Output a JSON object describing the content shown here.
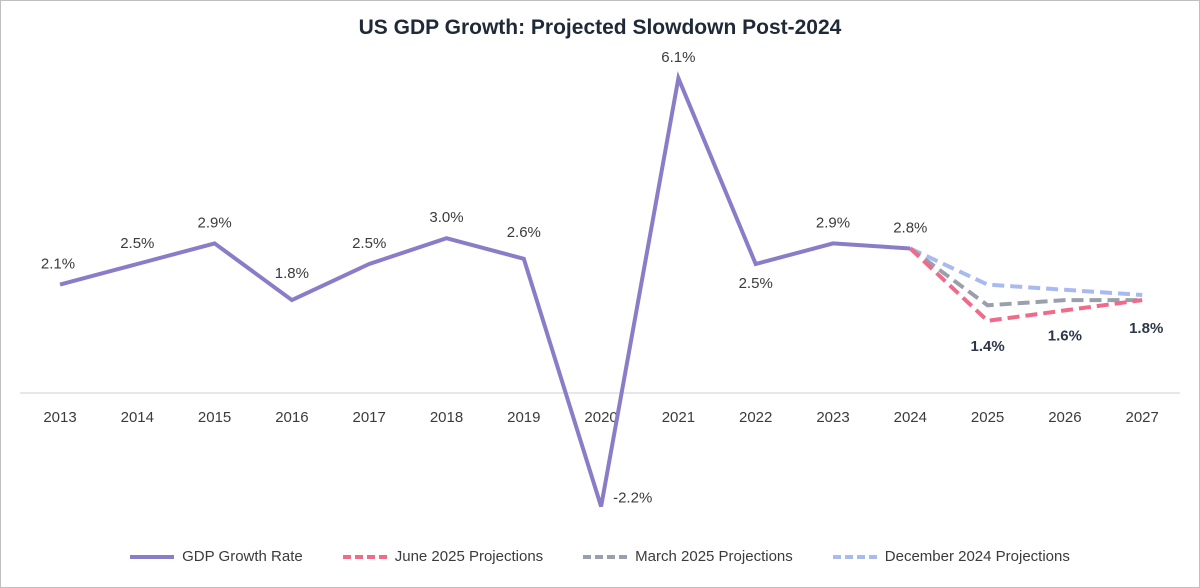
{
  "chart_data": {
    "type": "line",
    "title": "US GDP Growth: Projected Slowdown Post-2024",
    "xlabel": "",
    "ylabel": "",
    "ylim": [
      -2.5,
      6.5
    ],
    "grid": false,
    "legend_position": "bottom",
    "categories": [
      "2013",
      "2014",
      "2015",
      "2016",
      "2017",
      "2018",
      "2019",
      "2020",
      "2021",
      "2022",
      "2023",
      "2024",
      "2025",
      "2026",
      "2027"
    ],
    "series": [
      {
        "name": "GDP Growth Rate",
        "color": "#8b7cc8",
        "style": "solid",
        "x": [
          "2013",
          "2014",
          "2015",
          "2016",
          "2017",
          "2018",
          "2019",
          "2020",
          "2021",
          "2022",
          "2023",
          "2024"
        ],
        "values": [
          2.1,
          2.5,
          2.9,
          1.8,
          2.5,
          3.0,
          2.6,
          -2.2,
          6.1,
          2.5,
          2.9,
          2.8
        ],
        "labels": [
          "2.1%",
          "2.5%",
          "2.9%",
          "1.8%",
          "2.5%",
          "3.0%",
          "2.6%",
          "-2.2%",
          "6.1%",
          "2.5%",
          "2.9%",
          "2.8%"
        ]
      },
      {
        "name": "June 2025 Projections",
        "color": "#f06a8a",
        "style": "dashed",
        "x": [
          "2024",
          "2025",
          "2026",
          "2027"
        ],
        "values": [
          2.8,
          1.4,
          1.6,
          1.8
        ],
        "labels": [
          "",
          "1.4%",
          "1.6%",
          "1.8%"
        ]
      },
      {
        "name": "March 2025 Projections",
        "color": "#9aa0ab",
        "style": "dashed",
        "x": [
          "2024",
          "2025",
          "2026",
          "2027"
        ],
        "values": [
          2.8,
          1.7,
          1.8,
          1.8
        ],
        "labels": []
      },
      {
        "name": "December 2024 Projections",
        "color": "#a9baf0",
        "style": "dashed",
        "x": [
          "2024",
          "2025",
          "2026",
          "2027"
        ],
        "values": [
          2.8,
          2.1,
          2.0,
          1.9
        ],
        "labels": []
      }
    ]
  }
}
